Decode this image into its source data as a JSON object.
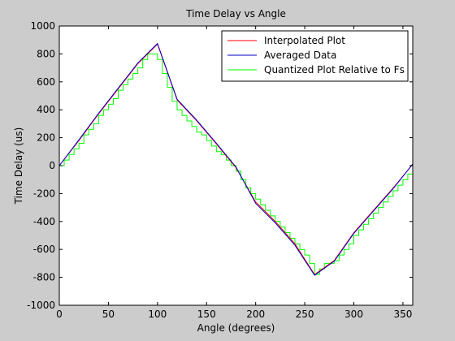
{
  "chart_data": {
    "type": "line",
    "title": "Time Delay vs Angle",
    "xlabel": "Angle (degrees)",
    "ylabel": "Time Delay (us)",
    "xlim": [
      0,
      360
    ],
    "ylim": [
      -1000,
      1000
    ],
    "grid": false,
    "legend_position": "top-right",
    "x_ticks": [
      0,
      50,
      100,
      150,
      200,
      250,
      300,
      350
    ],
    "y_ticks": [
      -1000,
      -800,
      -600,
      -400,
      -200,
      0,
      200,
      400,
      600,
      800,
      1000
    ],
    "series": [
      {
        "name": "Interpolated Plot",
        "color": "#ff0000",
        "step": false,
        "x": [
          0,
          20,
          40,
          60,
          80,
          100,
          120,
          140,
          160,
          180,
          200,
          220,
          240,
          260,
          280,
          300,
          320,
          340,
          360
        ],
        "y": [
          0,
          180,
          370,
          550,
          730,
          870,
          470,
          320,
          155,
          -15,
          -260,
          -400,
          -560,
          -780,
          -680,
          -480,
          -320,
          -160,
          10
        ]
      },
      {
        "name": "Averaged Data",
        "color": "#0000cc",
        "step": false,
        "x": [
          0,
          20,
          40,
          60,
          80,
          100,
          120,
          140,
          160,
          180,
          200,
          220,
          240,
          260,
          280,
          300,
          320,
          340,
          360
        ],
        "y": [
          0,
          185,
          375,
          555,
          735,
          875,
          475,
          325,
          160,
          -10,
          -270,
          -410,
          -570,
          -785,
          -685,
          -485,
          -325,
          -165,
          12
        ]
      },
      {
        "name": "Quantized Plot Relative to Fs",
        "color": "#00ff00",
        "step": true,
        "x": [
          0,
          5,
          10,
          15,
          20,
          25,
          30,
          35,
          40,
          45,
          50,
          55,
          60,
          65,
          70,
          75,
          80,
          85,
          90,
          95,
          100,
          105,
          110,
          115,
          120,
          125,
          130,
          135,
          140,
          145,
          150,
          155,
          160,
          165,
          170,
          175,
          180,
          185,
          190,
          195,
          200,
          205,
          210,
          215,
          220,
          225,
          230,
          235,
          240,
          245,
          250,
          255,
          260,
          265,
          270,
          275,
          280,
          285,
          290,
          295,
          300,
          305,
          310,
          315,
          320,
          325,
          330,
          335,
          340,
          345,
          350,
          355,
          360
        ],
        "y": [
          0,
          40,
          80,
          120,
          160,
          220,
          260,
          300,
          360,
          400,
          440,
          480,
          540,
          580,
          620,
          660,
          700,
          760,
          800,
          800,
          760,
          660,
          560,
          460,
          400,
          360,
          320,
          280,
          240,
          220,
          180,
          140,
          100,
          80,
          40,
          0,
          -40,
          -100,
          -160,
          -200,
          -240,
          -280,
          -320,
          -360,
          -400,
          -440,
          -480,
          -520,
          -560,
          -600,
          -640,
          -700,
          -780,
          -740,
          -700,
          -700,
          -680,
          -640,
          -600,
          -560,
          -500,
          -460,
          -420,
          -380,
          -340,
          -300,
          -260,
          -220,
          -180,
          -140,
          -100,
          -60,
          0
        ]
      }
    ]
  }
}
